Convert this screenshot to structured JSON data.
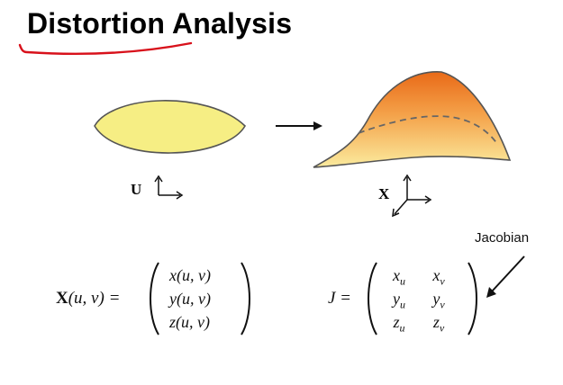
{
  "title": "Distortion Analysis",
  "left_label": "U",
  "right_label": "X",
  "jacobian_label": "Jacobian",
  "eq1": {
    "lhs_var": "X",
    "lhs_args": "(u, v) =",
    "rows": [
      "x(u, v)",
      "y(u, v)",
      "z(u, v)"
    ]
  },
  "eq2": {
    "lhs": "J =",
    "rows": [
      [
        {
          "base": "x",
          "sub": "u"
        },
        {
          "base": "x",
          "sub": "v"
        }
      ],
      [
        {
          "base": "y",
          "sub": "u"
        },
        {
          "base": "y",
          "sub": "v"
        }
      ],
      [
        {
          "base": "z",
          "sub": "u"
        },
        {
          "base": "z",
          "sub": "v"
        }
      ]
    ]
  },
  "colors": {
    "underline": "#d8111b",
    "flat_fill": "#f6ee84",
    "surface_top": "#ee7a22",
    "surface_bottom": "#fbe89a"
  }
}
